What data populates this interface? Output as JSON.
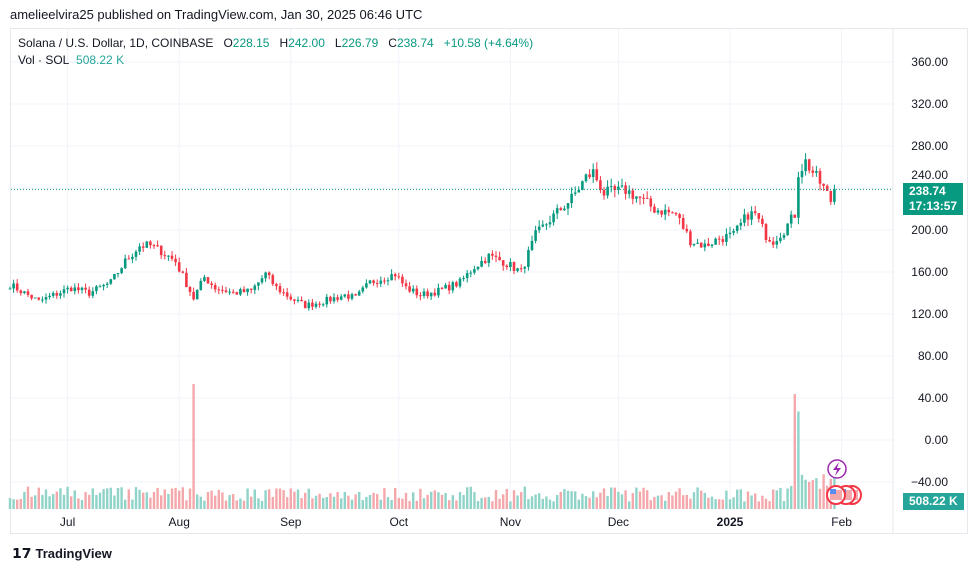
{
  "publisher": "amelieelvira25 published on TradingView.com, Jan 30, 2025 06:46 UTC",
  "legend": {
    "symbol": "Solana / U.S. Dollar, 1D, COINBASE",
    "o_label": "O",
    "o": "228.15",
    "h_label": "H",
    "h": "242.00",
    "l_label": "L",
    "l": "226.79",
    "c_label": "C",
    "c": "238.74",
    "change": "+10.58 (+4.64%)",
    "vol_label": "Vol · SOL",
    "vol": "508.22 K"
  },
  "price_tag": {
    "price": "238.74",
    "countdown": "17:13:57"
  },
  "volume_tag": "508.22 K",
  "footer": {
    "brand": "TradingView"
  },
  "colors": {
    "up": "#089981",
    "down": "#f23645",
    "vol_up": "#8fd3c9",
    "vol_down": "#f5a8ab",
    "grid": "#f0f3fa"
  },
  "chart_data": {
    "type": "candlestick",
    "interval": "1D",
    "y_ticks": [
      "360.00",
      "320.00",
      "280.00",
      "240.00",
      "200.00",
      "160.00",
      "120.00",
      "80.00",
      "40.00",
      "0.00",
      "−40.00"
    ],
    "y_tick_values": [
      360,
      320,
      280,
      240,
      200,
      160,
      120,
      80,
      40,
      0,
      -40
    ],
    "x_ticks": [
      {
        "label": "Jul",
        "date": "2024-07-01"
      },
      {
        "label": "Aug",
        "date": "2024-08-01"
      },
      {
        "label": "Sep",
        "date": "2024-09-01"
      },
      {
        "label": "Oct",
        "date": "2024-10-01"
      },
      {
        "label": "Nov",
        "date": "2024-11-01"
      },
      {
        "label": "Dec",
        "date": "2024-12-01"
      },
      {
        "label": "2025",
        "date": "2025-01-01"
      },
      {
        "label": "Feb",
        "date": "2025-02-01"
      }
    ],
    "last_close": 238.74,
    "approx_closes": [
      [
        "2024-06-15",
        148
      ],
      [
        "2024-06-23",
        132
      ],
      [
        "2024-07-02",
        145
      ],
      [
        "2024-07-07",
        140
      ],
      [
        "2024-07-13",
        150
      ],
      [
        "2024-07-17",
        170
      ],
      [
        "2024-07-21",
        185
      ],
      [
        "2024-07-24",
        185
      ],
      [
        "2024-07-27",
        180
      ],
      [
        "2024-07-31",
        170
      ],
      [
        "2024-08-05",
        135
      ],
      [
        "2024-08-08",
        155
      ],
      [
        "2024-08-11",
        145
      ],
      [
        "2024-08-16",
        140
      ],
      [
        "2024-08-21",
        142
      ],
      [
        "2024-08-25",
        158
      ],
      [
        "2024-08-28",
        145
      ],
      [
        "2024-09-01",
        135
      ],
      [
        "2024-09-05",
        128
      ],
      [
        "2024-09-10",
        132
      ],
      [
        "2024-09-16",
        138
      ],
      [
        "2024-09-19",
        135
      ],
      [
        "2024-09-23",
        150
      ],
      [
        "2024-09-27",
        155
      ],
      [
        "2024-09-30",
        158
      ],
      [
        "2024-10-03",
        145
      ],
      [
        "2024-10-07",
        138
      ],
      [
        "2024-10-12",
        142
      ],
      [
        "2024-10-18",
        150
      ],
      [
        "2024-10-22",
        165
      ],
      [
        "2024-10-26",
        175
      ],
      [
        "2024-10-30",
        170
      ],
      [
        "2024-11-04",
        160
      ],
      [
        "2024-11-08",
        195
      ],
      [
        "2024-11-12",
        210
      ],
      [
        "2024-11-18",
        230
      ],
      [
        "2024-11-22",
        250
      ],
      [
        "2024-11-24",
        255
      ],
      [
        "2024-11-27",
        235
      ],
      [
        "2024-12-03",
        238
      ],
      [
        "2024-12-07",
        230
      ],
      [
        "2024-12-11",
        220
      ],
      [
        "2024-12-17",
        215
      ],
      [
        "2024-12-21",
        190
      ],
      [
        "2024-12-25",
        185
      ],
      [
        "2024-12-29",
        192
      ],
      [
        "2025-01-02",
        195
      ],
      [
        "2025-01-06",
        215
      ],
      [
        "2025-01-08",
        215
      ],
      [
        "2025-01-11",
        195
      ],
      [
        "2025-01-13",
        190
      ],
      [
        "2025-01-16",
        200
      ],
      [
        "2025-01-19",
        215
      ],
      [
        "2025-01-20",
        255
      ],
      [
        "2025-01-22",
        265
      ],
      [
        "2025-01-25",
        250
      ],
      [
        "2025-01-27",
        240
      ],
      [
        "2025-01-29",
        228
      ],
      [
        "2025-01-30",
        238.74
      ]
    ],
    "volume_spikes": [
      [
        "2024-08-05",
        1.0
      ],
      [
        "2025-01-19",
        0.92
      ],
      [
        "2025-01-20",
        0.78
      ]
    ]
  }
}
